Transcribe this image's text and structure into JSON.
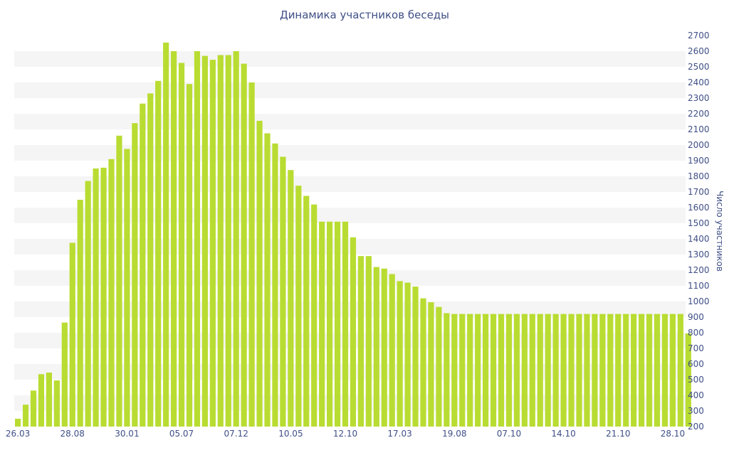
{
  "chart_data": {
    "type": "bar",
    "title": "Динамика участников беседы",
    "ylabel": "Число участников",
    "ylim": [
      200,
      2700
    ],
    "yticks": [
      200,
      300,
      400,
      500,
      600,
      700,
      800,
      900,
      1000,
      1100,
      1200,
      1300,
      1400,
      1500,
      1600,
      1700,
      1800,
      1900,
      2000,
      2100,
      2200,
      2300,
      2400,
      2500,
      2600,
      2700
    ],
    "xtick_labels": [
      "26.03",
      "28.08",
      "30.01",
      "05.07",
      "07.12",
      "10.05",
      "12.10",
      "17.03",
      "19.08",
      "07.10",
      "14.10",
      "21.10",
      "28.10"
    ],
    "xtick_bar_index": [
      0,
      7,
      14,
      21,
      28,
      35,
      42,
      49,
      56,
      63,
      70,
      77,
      84
    ],
    "y_axis_position": "right",
    "grid": "horizontal alternating bands",
    "bar_color": "#b9dc32",
    "band_color": "#f5f5f5",
    "values": [
      250,
      340,
      430,
      535,
      545,
      495,
      865,
      1375,
      1650,
      1770,
      1850,
      1855,
      1910,
      2060,
      1975,
      2140,
      2265,
      2330,
      2410,
      2655,
      2600,
      2525,
      2390,
      2600,
      2570,
      2545,
      2575,
      2575,
      2600,
      2520,
      2400,
      2155,
      2075,
      2010,
      1925,
      1840,
      1740,
      1675,
      1620,
      1510,
      1510,
      1510,
      1510,
      1410,
      1290,
      1290,
      1220,
      1210,
      1175,
      1130,
      1120,
      1095,
      1020,
      995,
      965,
      925,
      920,
      920,
      920,
      920,
      920,
      920,
      920,
      920,
      920,
      920,
      920,
      920,
      920,
      920,
      920,
      920,
      920,
      920,
      920,
      920,
      920,
      920,
      920,
      920,
      920,
      920,
      920,
      920,
      920,
      920,
      795
    ]
  }
}
